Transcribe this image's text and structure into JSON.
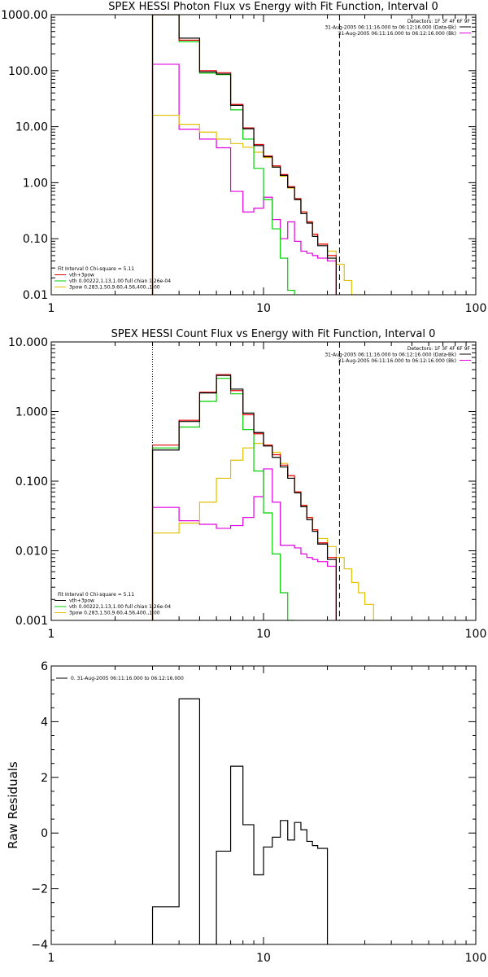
{
  "chart_data": [
    {
      "type": "line",
      "title": "SPEX HESSI Photon Flux vs Energy with Fit Function, Interval 0",
      "scale": {
        "x": "log",
        "y": "log"
      },
      "xlim": [
        1,
        100
      ],
      "ylim": [
        0.01,
        1000
      ],
      "x_tick_labels": [
        "1",
        "10",
        "100"
      ],
      "y_tick_values": [
        1000,
        100,
        10,
        1,
        0.1,
        0.01
      ],
      "y_tick_labels": [
        "1000.00",
        "100.00",
        "10.00",
        "1.00",
        "0.10",
        "0.01"
      ],
      "vlines": [
        {
          "x": 3.0,
          "style": "dotted",
          "color": "#c8a000"
        },
        {
          "x": 22.8,
          "style": "dashed",
          "color": "#000000"
        }
      ],
      "header": [
        "Detectors: 1F 3F 4F 6F 9F",
        "31-Aug-2005 06:11:16.000 to 06:12:16.000 (Data-Bk)",
        "31-Aug-2005 06:11:16.000 to 06:12:16.000 (Bk)"
      ],
      "legend_top": [
        {
          "color": "#000000"
        },
        {
          "color": "#e000e0"
        }
      ],
      "legend_bottom_title": "Fit Interval 0   Chi-square = 5.11",
      "legend_bottom": [
        {
          "label": "vth+3pow",
          "color": "#e00000"
        },
        {
          "label": "vth 0.00222,1.13,1.00  full chian 1.26e-04",
          "color": "#00d000"
        },
        {
          "label": "3pow 0.283,1.50,9.60,4.56,400.,1.00",
          "color": "#e0c000"
        }
      ],
      "edges": [
        3,
        4,
        5,
        6,
        7,
        8,
        9,
        10,
        11,
        12,
        13,
        14,
        15,
        16,
        17,
        18,
        20,
        22,
        24,
        26,
        28,
        30
      ],
      "series": [
        {
          "color": "#e000e0",
          "values": [
            130,
            9,
            6,
            4.2,
            0.7,
            0.3,
            0.35,
            0.55,
            0.22,
            0.1,
            0.2,
            0.09,
            0.06,
            0.055,
            0.05,
            0.045,
            0.04
          ]
        },
        {
          "color": "#e0c000",
          "values": [
            16,
            11,
            8,
            6,
            5,
            4.3,
            3.5,
            2.8,
            1.9,
            1.3,
            0.8,
            0.5,
            0.3,
            0.2,
            0.12,
            0.08,
            0.06,
            0.035,
            0.018,
            0.01,
            0.01
          ]
        },
        {
          "color": "#00d000",
          "values": [
            1000,
            330,
            90,
            85,
            20,
            6,
            1.8,
            0.5,
            0.15,
            0.045,
            0.012
          ]
        },
        {
          "color": "#e00000",
          "values": [
            1000,
            350,
            100,
            92,
            25,
            9.5,
            4.8,
            3.0,
            2.0,
            1.4,
            0.85,
            0.52,
            0.3,
            0.2,
            0.12,
            0.08,
            0.05
          ]
        },
        {
          "color": "#000000",
          "values": [
            1000,
            380,
            95,
            87,
            24,
            9.2,
            4.6,
            2.9,
            1.9,
            1.35,
            0.82,
            0.5,
            0.28,
            0.19,
            0.11,
            0.075,
            0.045
          ]
        }
      ]
    },
    {
      "type": "line",
      "title": "SPEX HESSI Count Flux vs Energy with Fit Function, Interval 0",
      "scale": {
        "x": "log",
        "y": "log"
      },
      "xlim": [
        1,
        100
      ],
      "ylim": [
        0.001,
        10
      ],
      "x_tick_labels": [
        "1",
        "10",
        "100"
      ],
      "y_tick_values": [
        10,
        1,
        0.1,
        0.01,
        0.001
      ],
      "y_tick_labels": [
        "10.000",
        "1.000",
        "0.100",
        "0.010",
        "0.001"
      ],
      "vlines": [
        {
          "x": 3.0,
          "style": "dotted",
          "color": "#000000"
        },
        {
          "x": 22.8,
          "style": "dashed",
          "color": "#000000"
        }
      ],
      "header": [
        "Detectors: 1F 3F 4F 6F 9F",
        "31-Aug-2005 06:11:16.000 to 06:12:16.000 (Data-Bk)",
        "31-Aug-2005 06:11:16.000 to 06:12:16.000 (Bk)"
      ],
      "legend_top": [
        {
          "color": "#000000"
        },
        {
          "color": "#e000e0"
        }
      ],
      "legend_bottom_title": "Fit Interval 0   Chi-square = 5.11",
      "legend_bottom": [
        {
          "label": "vth+3pow",
          "color": "#000000"
        },
        {
          "label": "vth 0.00222,1.13,1.00  full chian 1.26e-04",
          "color": "#00d000"
        },
        {
          "label": "3pow 0.283,1.50,9.60,4.56,400.,1.00",
          "color": "#e0c000"
        }
      ],
      "edges": [
        3,
        4,
        5,
        6,
        7,
        8,
        9,
        10,
        11,
        12,
        13,
        14,
        15,
        16,
        17,
        18,
        20,
        22,
        24,
        26,
        28,
        30,
        33,
        36
      ],
      "series": [
        {
          "color": "#e000e0",
          "values": [
            0.042,
            0.027,
            0.024,
            0.021,
            0.023,
            0.03,
            0.06,
            0.15,
            0.05,
            0.012,
            0.012,
            0.011,
            0.009,
            0.008,
            0.0075,
            0.007,
            0.006
          ]
        },
        {
          "color": "#e0c000",
          "values": [
            0.018,
            0.025,
            0.05,
            0.11,
            0.2,
            0.3,
            0.35,
            0.33,
            0.26,
            0.18,
            0.11,
            0.07,
            0.045,
            0.03,
            0.02,
            0.015,
            0.0115,
            0.008,
            0.0055,
            0.0035,
            0.0025,
            0.0017,
            0.001
          ]
        },
        {
          "color": "#00d000",
          "values": [
            0.3,
            0.6,
            1.4,
            3.0,
            1.8,
            0.55,
            0.14,
            0.035,
            0.009,
            0.0025,
            0.0008
          ]
        },
        {
          "color": "#e00000",
          "values": [
            0.33,
            0.75,
            1.9,
            3.4,
            2.0,
            0.9,
            0.48,
            0.33,
            0.24,
            0.17,
            0.12,
            0.07,
            0.045,
            0.03,
            0.02,
            0.013,
            0.008
          ]
        },
        {
          "color": "#000000",
          "values": [
            0.28,
            0.72,
            1.85,
            3.3,
            2.1,
            0.95,
            0.5,
            0.32,
            0.22,
            0.16,
            0.11,
            0.068,
            0.043,
            0.028,
            0.019,
            0.0125,
            0.0075
          ]
        }
      ]
    },
    {
      "type": "line",
      "title": "",
      "scale": {
        "x": "log",
        "y": "linear"
      },
      "xlim": [
        1,
        100
      ],
      "ylim": [
        -4,
        6
      ],
      "ylabel": "Raw Residuals",
      "x_tick_labels": [
        "1",
        "10",
        "100"
      ],
      "y_tick_values": [
        6,
        4,
        2,
        0,
        -2,
        -4
      ],
      "y_tick_labels": [
        "6",
        "4",
        "2",
        "0",
        "−2",
        "−4"
      ],
      "legend_top_left": [
        {
          "label": "0. 31-Aug-2005 06:11:16.000 to 06:12:16.000",
          "color": "#000000"
        }
      ],
      "edges": [
        3,
        4,
        5,
        6,
        7,
        8,
        9,
        10,
        11,
        12,
        13,
        14,
        15,
        16,
        17,
        18,
        20,
        22,
        24
      ],
      "series": [
        {
          "color": "#000000",
          "values": [
            -2.65,
            4.82,
            -4.1,
            -0.65,
            2.4,
            0.3,
            -1.5,
            -0.5,
            -0.15,
            0.45,
            -0.25,
            0.38,
            0.12,
            -0.3,
            -0.45,
            -0.55
          ]
        }
      ]
    }
  ]
}
